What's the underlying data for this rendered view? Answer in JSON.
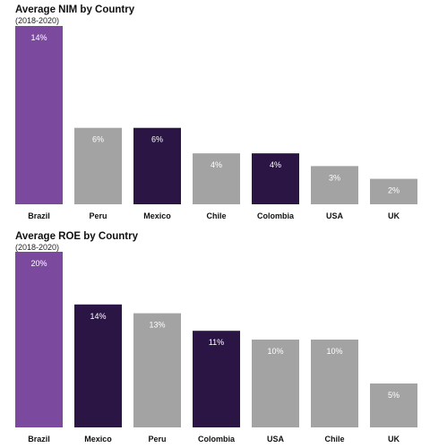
{
  "chart_data": [
    {
      "type": "bar",
      "title": "Average NIM by Country",
      "subtitle": "(2018-2020)",
      "categories": [
        "Brazil",
        "Peru",
        "Mexico",
        "Chile",
        "Colombia",
        "USA",
        "UK"
      ],
      "values": [
        14,
        6,
        6,
        4,
        4,
        3,
        2
      ],
      "value_labels": [
        "14%",
        "6%",
        "6%",
        "4%",
        "4%",
        "3%",
        "2%"
      ],
      "bar_colors": [
        "#7b4a9e",
        "#a3a3a3",
        "#2b1544",
        "#a3a3a3",
        "#2b1544",
        "#a3a3a3",
        "#a3a3a3"
      ],
      "ylim": [
        0,
        14
      ],
      "xlabel": "",
      "ylabel": "",
      "grid": false,
      "legend": "none"
    },
    {
      "type": "bar",
      "title": "Average ROE by Country",
      "subtitle": "(2018-2020)",
      "categories": [
        "Brazil",
        "Mexico",
        "Peru",
        "Colombia",
        "USA",
        "Chile",
        "UK"
      ],
      "values": [
        20,
        14,
        13,
        11,
        10,
        10,
        5
      ],
      "value_labels": [
        "20%",
        "14%",
        "13%",
        "11%",
        "10%",
        "10%",
        "5%"
      ],
      "bar_colors": [
        "#7b4a9e",
        "#2b1544",
        "#a3a3a3",
        "#2b1544",
        "#a3a3a3",
        "#a3a3a3",
        "#a3a3a3"
      ],
      "ylim": [
        0,
        20
      ],
      "xlabel": "",
      "ylabel": "",
      "grid": false,
      "legend": "none"
    }
  ]
}
